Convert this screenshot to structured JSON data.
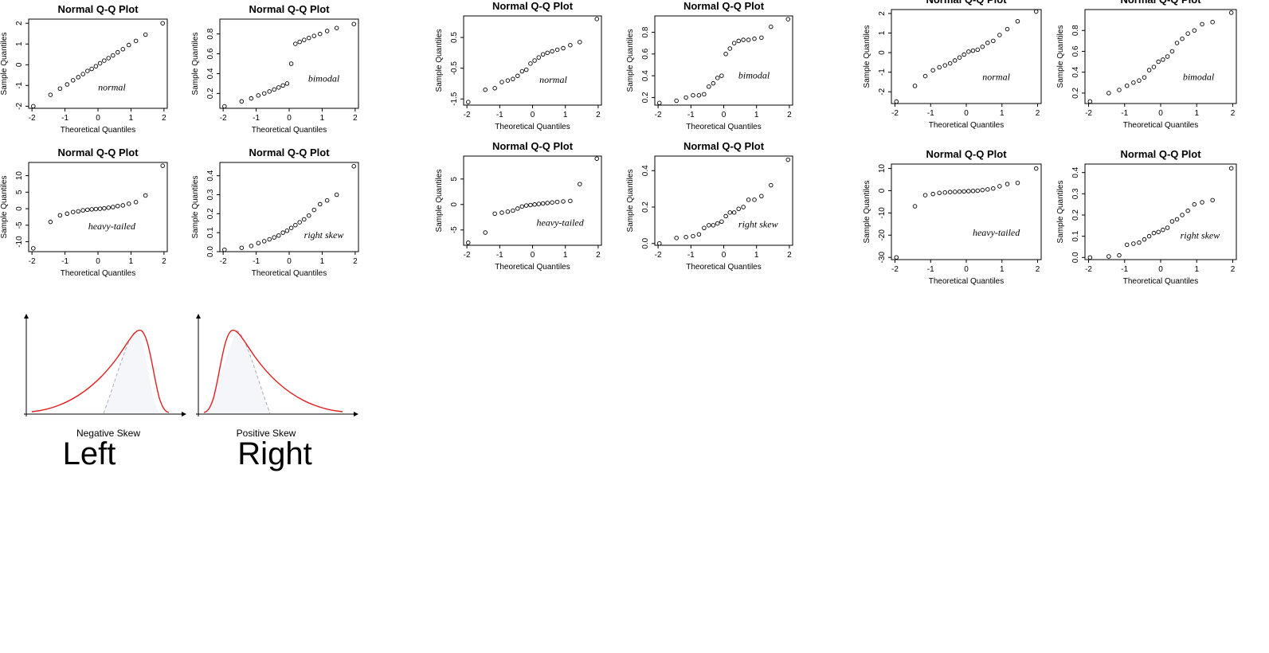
{
  "chart_data": [
    {
      "type": "scatter",
      "title": "Normal Q-Q Plot",
      "x_label": "Theoretical Quantiles",
      "y_label": "Sample Quantiles",
      "annotation": "normal",
      "x": [
        -1.96,
        -1.44,
        -1.15,
        -0.935,
        -0.755,
        -0.598,
        -0.454,
        -0.319,
        -0.189,
        -0.063,
        0.063,
        0.189,
        0.319,
        0.454,
        0.598,
        0.755,
        0.935,
        1.15,
        1.44,
        1.96
      ],
      "values": [
        -2.0,
        -1.45,
        -1.15,
        -0.95,
        -0.75,
        -0.6,
        -0.45,
        -0.3,
        -0.2,
        -0.07,
        0.07,
        0.2,
        0.32,
        0.45,
        0.6,
        0.75,
        0.95,
        1.15,
        1.45,
        2.0
      ],
      "xlim": [
        -2.1,
        2.1
      ],
      "xticks": [
        -2,
        -1,
        0,
        1,
        2
      ],
      "ylim": [
        -2.1,
        2.2
      ],
      "yticks": [
        -2,
        -1,
        0,
        1,
        2
      ]
    },
    {
      "type": "scatter",
      "title": "Normal Q-Q Plot",
      "x_label": "Theoretical Quantiles",
      "y_label": "Sample Quantiles",
      "annotation": "bimodal",
      "x": [
        -1.96,
        -1.44,
        -1.15,
        -0.935,
        -0.755,
        -0.598,
        -0.454,
        -0.319,
        -0.189,
        -0.063,
        0.063,
        0.189,
        0.319,
        0.454,
        0.598,
        0.755,
        0.935,
        1.15,
        1.44,
        1.96
      ],
      "values": [
        0.07,
        0.12,
        0.15,
        0.18,
        0.2,
        0.22,
        0.24,
        0.26,
        0.28,
        0.3,
        0.5,
        0.7,
        0.72,
        0.74,
        0.76,
        0.78,
        0.8,
        0.83,
        0.86,
        0.9
      ],
      "xlim": [
        -2.1,
        2.1
      ],
      "xticks": [
        -2,
        -1,
        0,
        1,
        2
      ],
      "ylim": [
        0.05,
        0.95
      ],
      "yticks": [
        0.2,
        0.4,
        0.6,
        0.8
      ]
    },
    {
      "type": "scatter",
      "title": "Normal Q-Q Plot",
      "x_label": "Theoretical Quantiles",
      "y_label": "Sample Quantiles",
      "annotation": "heavy-tailed",
      "x": [
        -1.96,
        -1.44,
        -1.15,
        -0.935,
        -0.755,
        -0.598,
        -0.454,
        -0.319,
        -0.189,
        -0.063,
        0.063,
        0.189,
        0.319,
        0.454,
        0.598,
        0.755,
        0.935,
        1.15,
        1.44,
        1.96
      ],
      "values": [
        -12,
        -4,
        -2,
        -1.5,
        -1,
        -0.8,
        -0.5,
        -0.3,
        -0.2,
        -0.1,
        0,
        0.1,
        0.3,
        0.5,
        0.8,
        1,
        1.5,
        2,
        4,
        13
      ],
      "xlim": [
        -2.1,
        2.1
      ],
      "xticks": [
        -2,
        -1,
        0,
        1,
        2
      ],
      "ylim": [
        -13,
        14
      ],
      "yticks": [
        -10,
        -5,
        0,
        5,
        10
      ]
    },
    {
      "type": "scatter",
      "title": "Normal Q-Q Plot",
      "x_label": "Theoretical Quantiles",
      "y_label": "Sample Quantiles",
      "annotation": "right skew",
      "x": [
        -1.96,
        -1.44,
        -1.15,
        -0.935,
        -0.755,
        -0.598,
        -0.454,
        -0.319,
        -0.189,
        -0.063,
        0.063,
        0.189,
        0.319,
        0.454,
        0.598,
        0.755,
        0.935,
        1.15,
        1.44,
        1.96
      ],
      "values": [
        0.01,
        0.02,
        0.03,
        0.045,
        0.055,
        0.065,
        0.075,
        0.085,
        0.1,
        0.11,
        0.125,
        0.14,
        0.155,
        0.17,
        0.19,
        0.22,
        0.25,
        0.27,
        0.3,
        0.45
      ],
      "xlim": [
        -2.1,
        2.1
      ],
      "xticks": [
        -2,
        -1,
        0,
        1,
        2
      ],
      "ylim": [
        0,
        0.47
      ],
      "yticks": [
        {
          "value": 0,
          "label": "0.0"
        },
        0.1,
        0.2,
        0.3,
        0.4
      ]
    },
    {
      "type": "scatter",
      "title": "Normal Q-Q Plot",
      "x_label": "Theoretical Quantiles",
      "y_label": "Sample Quantiles",
      "annotation": "normal",
      "x": [
        -1.96,
        -1.44,
        -1.15,
        -0.935,
        -0.755,
        -0.598,
        -0.454,
        -0.319,
        -0.189,
        -0.063,
        0.063,
        0.189,
        0.319,
        0.454,
        0.598,
        0.755,
        0.935,
        1.15,
        1.44,
        1.96
      ],
      "values": [
        -1.6,
        -1.2,
        -1.15,
        -0.95,
        -0.9,
        -0.85,
        -0.75,
        -0.6,
        -0.55,
        -0.35,
        -0.25,
        -0.15,
        -0.05,
        0.0,
        0.05,
        0.1,
        0.15,
        0.25,
        0.35,
        1.1
      ],
      "xlim": [
        -2.1,
        2.1
      ],
      "xticks": [
        -2,
        -1,
        0,
        1,
        2
      ],
      "ylim": [
        -1.7,
        1.2
      ],
      "yticks": [
        -1.5,
        -0.5,
        0.5
      ]
    },
    {
      "type": "scatter",
      "title": "Normal Q-Q Plot",
      "x_label": "Theoretical Quantiles",
      "y_label": "Sample Quantiles",
      "annotation": "bimodal",
      "x": [
        -1.96,
        -1.44,
        -1.15,
        -0.935,
        -0.755,
        -0.598,
        -0.454,
        -0.319,
        -0.189,
        -0.063,
        0.063,
        0.189,
        0.319,
        0.454,
        0.598,
        0.755,
        0.935,
        1.15,
        1.44,
        1.96
      ],
      "values": [
        0.15,
        0.17,
        0.2,
        0.22,
        0.22,
        0.23,
        0.3,
        0.33,
        0.38,
        0.4,
        0.6,
        0.65,
        0.7,
        0.72,
        0.73,
        0.73,
        0.74,
        0.75,
        0.85,
        0.92
      ],
      "xlim": [
        -2.1,
        2.1
      ],
      "xticks": [
        -2,
        -1,
        0,
        1,
        2
      ],
      "ylim": [
        0.13,
        0.95
      ],
      "yticks": [
        0.2,
        0.4,
        0.6,
        0.8
      ]
    },
    {
      "type": "scatter",
      "title": "Normal Q-Q Plot",
      "x_label": "Theoretical Quantiles",
      "y_label": "Sample Quantiles",
      "annotation": "heavy-tailed",
      "x": [
        -1.96,
        -1.44,
        -1.15,
        -0.935,
        -0.755,
        -0.598,
        -0.454,
        -0.319,
        -0.189,
        -0.063,
        0.063,
        0.189,
        0.319,
        0.454,
        0.598,
        0.755,
        0.935,
        1.15,
        1.44,
        1.96
      ],
      "values": [
        -7.5,
        -5.5,
        -1.8,
        -1.6,
        -1.4,
        -1.2,
        -0.8,
        -0.4,
        -0.2,
        -0.1,
        0,
        0.1,
        0.2,
        0.3,
        0.4,
        0.5,
        0.6,
        0.7,
        4,
        9
      ],
      "xlim": [
        -2.1,
        2.1
      ],
      "xticks": [
        -2,
        -1,
        0,
        1,
        2
      ],
      "ylim": [
        -8,
        9.5
      ],
      "yticks": [
        -5,
        0,
        5
      ]
    },
    {
      "type": "scatter",
      "title": "Normal Q-Q Plot",
      "x_label": "Theoretical Quantiles",
      "y_label": "Sample Quantiles",
      "annotation": "right skew",
      "x": [
        -1.96,
        -1.44,
        -1.15,
        -0.935,
        -0.755,
        -0.598,
        -0.454,
        -0.319,
        -0.189,
        -0.063,
        0.063,
        0.189,
        0.319,
        0.454,
        0.598,
        0.755,
        0.935,
        1.15,
        1.44,
        1.96
      ],
      "values": [
        0.0,
        0.03,
        0.035,
        0.04,
        0.05,
        0.085,
        0.1,
        0.1,
        0.11,
        0.12,
        0.15,
        0.17,
        0.17,
        0.19,
        0.2,
        0.24,
        0.24,
        0.26,
        0.32,
        0.46
      ],
      "xlim": [
        -2.1,
        2.1
      ],
      "xticks": [
        -2,
        -1,
        0,
        1,
        2
      ],
      "ylim": [
        -0.01,
        0.48
      ],
      "yticks": [
        {
          "value": 0,
          "label": "0.0"
        },
        0.2,
        0.4
      ]
    },
    {
      "type": "scatter",
      "title": "Normal Q-Q Plot",
      "x_label": "Theoretical Quantiles",
      "y_label": "Sample Quantiles",
      "annotation": "normal",
      "x": [
        -1.96,
        -1.44,
        -1.15,
        -0.935,
        -0.755,
        -0.598,
        -0.454,
        -0.319,
        -0.189,
        -0.063,
        0.063,
        0.189,
        0.319,
        0.454,
        0.598,
        0.755,
        0.935,
        1.15,
        1.44,
        1.96
      ],
      "values": [
        -2.5,
        -1.7,
        -1.2,
        -0.9,
        -0.75,
        -0.65,
        -0.55,
        -0.4,
        -0.25,
        -0.1,
        0.05,
        0.1,
        0.15,
        0.3,
        0.5,
        0.6,
        0.9,
        1.2,
        1.6,
        2.1
      ],
      "xlim": [
        -2.1,
        2.1
      ],
      "xticks": [
        -2,
        -1,
        0,
        1,
        2
      ],
      "ylim": [
        -2.6,
        2.2
      ],
      "yticks": [
        -2,
        -1,
        0,
        1,
        2
      ]
    },
    {
      "type": "scatter",
      "title": "Normal Q-Q Plot",
      "x_label": "Theoretical Quantiles",
      "y_label": "Sample Quantiles",
      "annotation": "bimodal",
      "x": [
        -1.96,
        -1.44,
        -1.15,
        -0.935,
        -0.755,
        -0.598,
        -0.454,
        -0.319,
        -0.189,
        -0.063,
        0.063,
        0.189,
        0.319,
        0.454,
        0.598,
        0.755,
        0.935,
        1.15,
        1.44,
        1.96
      ],
      "values": [
        0.12,
        0.2,
        0.23,
        0.27,
        0.3,
        0.32,
        0.35,
        0.42,
        0.45,
        0.5,
        0.52,
        0.55,
        0.6,
        0.68,
        0.72,
        0.77,
        0.8,
        0.86,
        0.88,
        0.97
      ],
      "xlim": [
        -2.1,
        2.1
      ],
      "xticks": [
        -2,
        -1,
        0,
        1,
        2
      ],
      "ylim": [
        0.1,
        1.0
      ],
      "yticks": [
        0.2,
        0.4,
        0.6,
        0.8
      ]
    },
    {
      "type": "scatter",
      "title": "Normal Q-Q Plot",
      "x_label": "Theoretical Quantiles",
      "y_label": "Sample Quantiles",
      "annotation": "heavy-tailed",
      "x": [
        -1.96,
        -1.44,
        -1.15,
        -0.935,
        -0.755,
        -0.598,
        -0.454,
        -0.319,
        -0.189,
        -0.063,
        0.063,
        0.189,
        0.319,
        0.454,
        0.598,
        0.755,
        0.935,
        1.15,
        1.44,
        1.96
      ],
      "values": [
        -30,
        -7,
        -2,
        -1.5,
        -1,
        -0.8,
        -0.6,
        -0.5,
        -0.4,
        -0.3,
        -0.2,
        -0.1,
        0,
        0.3,
        0.6,
        1,
        2,
        3,
        3.5,
        10
      ],
      "xlim": [
        -2.1,
        2.1
      ],
      "xticks": [
        -2,
        -1,
        0,
        1,
        2
      ],
      "ylim": [
        -31,
        12
      ],
      "yticks": [
        -30,
        -20,
        -10,
        0,
        10
      ]
    },
    {
      "type": "scatter",
      "title": "Normal Q-Q Plot",
      "x_label": "Theoretical Quantiles",
      "y_label": "Sample Quantiles",
      "annotation": "right skew",
      "x": [
        -1.96,
        -1.44,
        -1.15,
        -0.935,
        -0.755,
        -0.598,
        -0.454,
        -0.319,
        -0.189,
        -0.063,
        0.063,
        0.189,
        0.319,
        0.454,
        0.598,
        0.755,
        0.935,
        1.15,
        1.44,
        1.96
      ],
      "values": [
        0.0,
        0.005,
        0.01,
        0.06,
        0.065,
        0.07,
        0.085,
        0.1,
        0.115,
        0.12,
        0.13,
        0.14,
        0.17,
        0.18,
        0.2,
        0.22,
        0.25,
        0.26,
        0.27,
        0.42
      ],
      "xlim": [
        -2.1,
        2.1
      ],
      "xticks": [
        -2,
        -1,
        0,
        1,
        2
      ],
      "ylim": [
        -0.01,
        0.44
      ],
      "yticks": [
        {
          "value": 0,
          "label": "0.0"
        },
        0.1,
        0.2,
        0.3,
        0.4
      ]
    }
  ],
  "diagrams": [
    {
      "caption": "Negative Skew",
      "label": "Left"
    },
    {
      "caption": "Positive Skew",
      "label": "Right"
    }
  ]
}
